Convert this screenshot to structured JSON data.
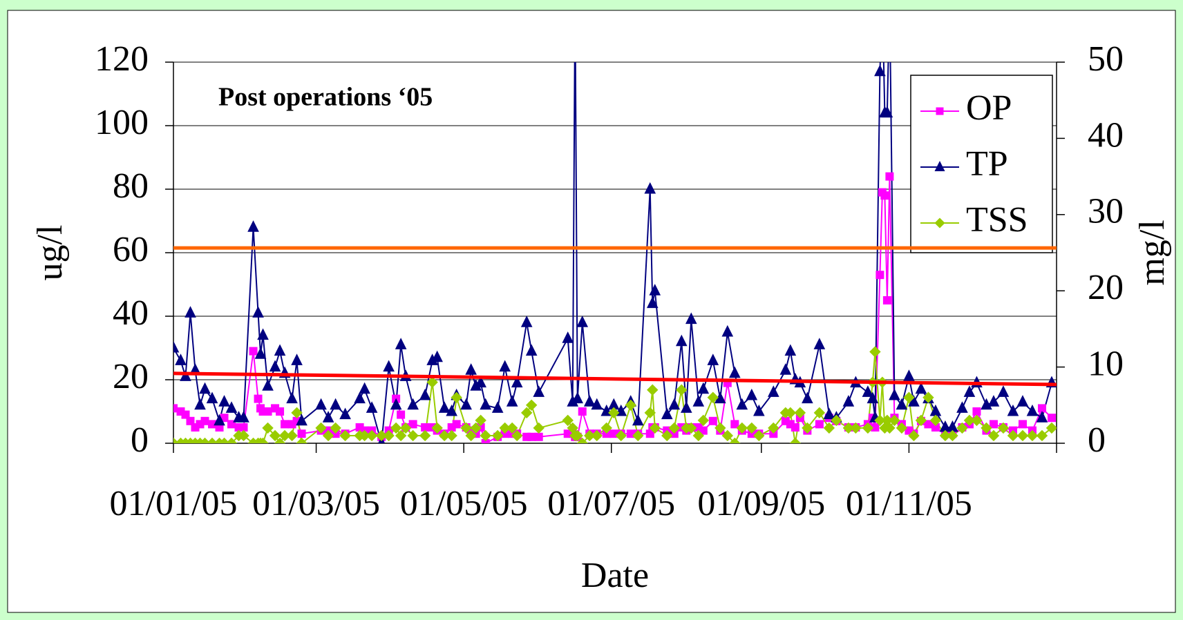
{
  "chart_data": {
    "type": "line",
    "annotation": "Post operations ‘05",
    "x_label": "Date",
    "y_label": "ug/l",
    "y2_label": "mg/l",
    "x": [
      "2005-01-01",
      "2005-01-04",
      "2005-01-06",
      "2005-01-08",
      "2005-01-10",
      "2005-01-12",
      "2005-01-14",
      "2005-01-17",
      "2005-01-20",
      "2005-01-22",
      "2005-01-25",
      "2005-01-28",
      "2005-01-30",
      "2005-02-03",
      "2005-02-05",
      "2005-02-06",
      "2005-02-07",
      "2005-02-09",
      "2005-02-12",
      "2005-02-14",
      "2005-02-16",
      "2005-02-19",
      "2005-02-21",
      "2005-02-23",
      "2005-03-03",
      "2005-03-06",
      "2005-03-09",
      "2005-03-13",
      "2005-03-19",
      "2005-03-21",
      "2005-03-24",
      "2005-03-28",
      "2005-03-31",
      "2005-04-03",
      "2005-04-05",
      "2005-04-07",
      "2005-04-10",
      "2005-04-15",
      "2005-04-18",
      "2005-04-20",
      "2005-04-23",
      "2005-04-26",
      "2005-04-28",
      "2005-05-02",
      "2005-05-04",
      "2005-05-06",
      "2005-05-08",
      "2005-05-10",
      "2005-05-15",
      "2005-05-18",
      "2005-05-21",
      "2005-05-23",
      "2005-05-27",
      "2005-05-29",
      "2005-06-01",
      "2005-06-13",
      "2005-06-15",
      "2005-06-16",
      "2005-06-17",
      "2005-06-19",
      "2005-06-22",
      "2005-06-25",
      "2005-06-29",
      "2005-07-02",
      "2005-07-05",
      "2005-07-09",
      "2005-07-12",
      "2005-07-17",
      "2005-07-18",
      "2005-07-19",
      "2005-07-24",
      "2005-07-27",
      "2005-07-30",
      "2005-08-01",
      "2005-08-03",
      "2005-08-06",
      "2005-08-08",
      "2005-08-12",
      "2005-08-15",
      "2005-08-18",
      "2005-08-21",
      "2005-08-24",
      "2005-08-28",
      "2005-08-31",
      "2005-09-06",
      "2005-09-11",
      "2005-09-13",
      "2005-09-15",
      "2005-09-17",
      "2005-09-20",
      "2005-09-25",
      "2005-09-29",
      "2005-10-02",
      "2005-10-07",
      "2005-10-10",
      "2005-10-15",
      "2005-10-17",
      "2005-10-18",
      "2005-10-20",
      "2005-10-21",
      "2005-10-22",
      "2005-10-23",
      "2005-10-24",
      "2005-10-26",
      "2005-10-29",
      "2005-11-01",
      "2005-11-03",
      "2005-11-06",
      "2005-11-09",
      "2005-11-12",
      "2005-11-16",
      "2005-11-19",
      "2005-11-23",
      "2005-11-26",
      "2005-11-29",
      "2005-12-03",
      "2005-12-06",
      "2005-12-10",
      "2005-12-14",
      "2005-12-18",
      "2005-12-22",
      "2005-12-26",
      "2005-12-30"
    ],
    "series": [
      {
        "name": "OP",
        "color": "#ff00ff",
        "marker": "square",
        "values": [
          11,
          10,
          9,
          7,
          5,
          6,
          7,
          6,
          5,
          8,
          6,
          5,
          5,
          29,
          14,
          11,
          10,
          10,
          11,
          10,
          6,
          6,
          7,
          3,
          4,
          4,
          3,
          3,
          5,
          4,
          4,
          2,
          4,
          14,
          9,
          5,
          6,
          5,
          5,
          4,
          3,
          5,
          6,
          5,
          4,
          3,
          5,
          0,
          2,
          3,
          3,
          3,
          2,
          2,
          2,
          3,
          3,
          2,
          2,
          10,
          3,
          3,
          3,
          3,
          3,
          3,
          3,
          3,
          5,
          5,
          4,
          3,
          5,
          4,
          5,
          5,
          4,
          7,
          4,
          19,
          6,
          4,
          3,
          3,
          3,
          7,
          6,
          5,
          8,
          4,
          6,
          8,
          7,
          5,
          5,
          6,
          8,
          5,
          53,
          79,
          78,
          45,
          84,
          8,
          6,
          4,
          3,
          7,
          6,
          5,
          3,
          3,
          5,
          6,
          10,
          4,
          6,
          5,
          4,
          6,
          4,
          11,
          8
        ]
      },
      {
        "name": "TP",
        "color": "#000080",
        "marker": "triangle",
        "values": [
          30,
          26,
          21,
          41,
          23,
          12,
          17,
          14,
          7,
          13,
          11,
          8,
          8,
          68,
          41,
          28,
          34,
          18,
          24,
          29,
          22,
          14,
          26,
          7,
          12,
          8,
          12,
          9,
          14,
          17,
          11,
          0,
          24,
          12,
          31,
          21,
          12,
          15,
          26,
          27,
          11,
          10,
          15,
          12,
          23,
          18,
          19,
          12,
          11,
          24,
          13,
          19,
          38,
          29,
          16,
          33,
          13,
          140,
          14,
          38,
          13,
          12,
          10,
          12,
          10,
          13,
          7,
          80,
          44,
          48,
          9,
          12,
          32,
          11,
          39,
          13,
          17,
          26,
          14,
          35,
          22,
          12,
          15,
          10,
          16,
          23,
          29,
          20,
          19,
          14,
          31,
          9,
          8,
          13,
          19,
          16,
          14,
          8,
          117,
          140,
          104,
          104,
          140,
          15,
          12,
          21,
          13,
          17,
          14,
          10,
          5,
          5,
          11,
          16,
          19,
          12,
          13,
          16,
          10,
          13,
          10,
          8,
          19
        ]
      },
      {
        "name": "TSS",
        "color": "#99cc00",
        "marker": "diamond",
        "axis": "y2",
        "values": [
          0,
          0,
          0,
          0,
          0,
          0,
          0,
          0,
          0,
          0,
          0,
          1,
          1,
          0,
          0,
          0,
          0,
          2,
          1,
          0,
          1,
          1,
          4,
          0,
          2,
          1,
          2,
          1,
          1,
          1,
          1,
          1,
          1,
          2,
          1,
          2,
          1,
          1,
          8,
          2,
          1,
          1,
          6,
          2,
          1,
          2,
          3,
          1,
          1,
          2,
          2,
          1,
          4,
          5,
          2,
          3,
          2,
          1,
          1,
          0,
          1,
          1,
          2,
          4,
          1,
          5,
          1,
          4,
          7,
          2,
          1,
          2,
          7,
          2,
          2,
          1,
          3,
          6,
          2,
          1,
          0,
          2,
          2,
          1,
          2,
          4,
          4,
          0,
          4,
          2,
          4,
          2,
          3,
          2,
          2,
          2,
          8,
          12,
          3,
          8,
          2,
          3,
          2,
          3,
          2,
          6,
          1,
          3,
          6,
          3,
          1,
          1,
          2,
          3,
          3,
          2,
          1,
          2,
          1,
          1,
          1,
          1,
          2
        ]
      }
    ],
    "reference_lines": [
      {
        "color": "#ff6600",
        "values": [
          61.5,
          61.5
        ]
      },
      {
        "color": "#ff0000",
        "values": [
          22,
          18.5
        ]
      }
    ],
    "xlim": [
      "2005-01-01",
      "2006-01-01"
    ],
    "xticks": [
      {
        "value": "2005-01-01",
        "label": "01/01/05"
      },
      {
        "value": "2005-03-01",
        "label": "01/03/05"
      },
      {
        "value": "2005-05-01",
        "label": "01/05/05"
      },
      {
        "value": "2005-07-01",
        "label": "01/07/05"
      },
      {
        "value": "2005-09-01",
        "label": "01/09/05"
      },
      {
        "value": "2005-11-01",
        "label": "01/11/05"
      }
    ],
    "ylim": [
      0,
      120
    ],
    "yticks": [
      0,
      20,
      40,
      60,
      80,
      100,
      120
    ],
    "y2lim": [
      0,
      50
    ],
    "y2ticks": [
      0,
      10,
      20,
      30,
      40,
      50
    ],
    "grid": true,
    "legend": "upper right"
  }
}
